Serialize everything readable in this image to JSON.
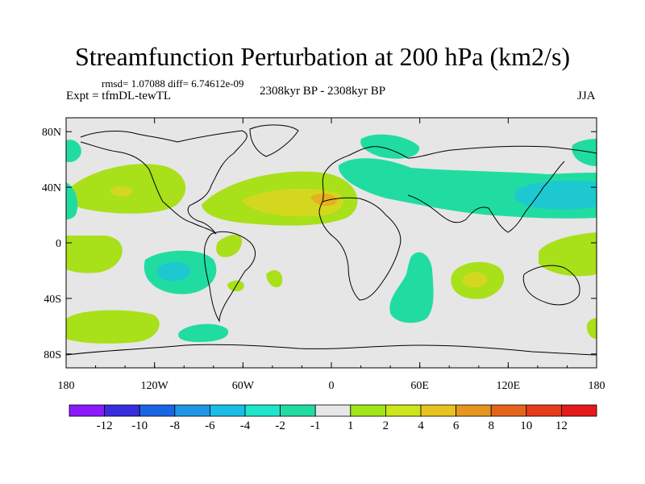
{
  "title": "Streamfunction Perturbation at 200 hPa (km2/s)",
  "stats": "rmsd= 1.07088 diff= 6.74612e-09",
  "experiment": "Expt = tfmDL-tewTL",
  "period": "2308kyr BP - 2308kyr BP",
  "season": "JJA",
  "axes": {
    "x_ticks": [
      "180",
      "120W",
      "60W",
      "0",
      "60E",
      "120E",
      "180"
    ],
    "y_ticks": [
      "80N",
      "40N",
      "0",
      "40S",
      "80S"
    ]
  },
  "colorbar": {
    "labels": [
      "-12",
      "-10",
      "-8",
      "-6",
      "-4",
      "-2",
      "-1",
      "1",
      "2",
      "4",
      "6",
      "8",
      "10",
      "12"
    ],
    "colors": [
      "#8c1aff",
      "#3a2cdf",
      "#1a64e6",
      "#1e96e6",
      "#19bee6",
      "#1ee6cc",
      "#21dca0",
      "#e6e6e6",
      "#a0e619",
      "#cde619",
      "#e6c31e",
      "#e6961e",
      "#e6641a",
      "#e63c1a",
      "#e61a1a"
    ]
  },
  "colors": {
    "zero_band": "#e6e6e6",
    "pos_1_2": "#a8e01a",
    "pos_2_4": "#d3d81e",
    "pos_4_6": "#e6b01e",
    "neg_1_2": "#21dca0",
    "neg_2_4": "#1ec8d0",
    "coastline": "#000000"
  }
}
